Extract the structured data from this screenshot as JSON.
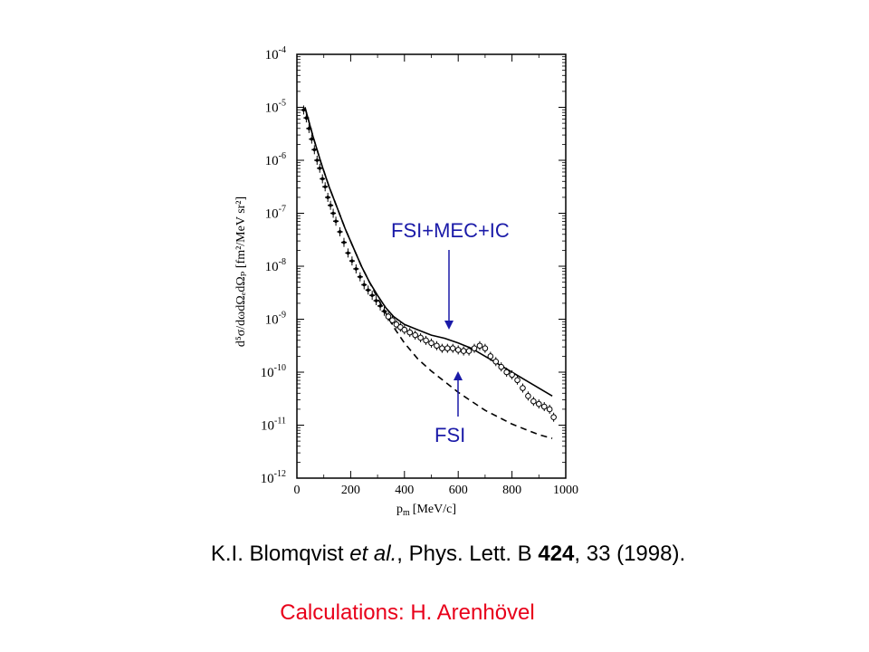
{
  "chart_data": {
    "type": "line",
    "xlabel_main": "p",
    "xlabel_sub": "m",
    "xlabel_unit": "[MeV/c]",
    "ylabel": "d⁵σ/dωdΩₑdΩₚ [fm²/MeV sr²]",
    "xlim": [
      0,
      1000
    ],
    "ylim_exponent": [
      -12,
      -4
    ],
    "y_scale": "log",
    "x_ticks": [
      "0",
      "200",
      "400",
      "600",
      "800",
      "1000"
    ],
    "y_ticks": [
      {
        "base": "10",
        "exp": "-4"
      },
      {
        "base": "10",
        "exp": "-5"
      },
      {
        "base": "10",
        "exp": "-6"
      },
      {
        "base": "10",
        "exp": "-7"
      },
      {
        "base": "10",
        "exp": "-8"
      },
      {
        "base": "10",
        "exp": "-9"
      },
      {
        "base": "10",
        "exp": "-10"
      },
      {
        "base": "10",
        "exp": "-11"
      },
      {
        "base": "10",
        "exp": "-12"
      }
    ],
    "series": [
      {
        "name": "FSI+MEC+IC",
        "style": "solid",
        "x": [
          30,
          60,
          90,
          120,
          150,
          180,
          210,
          240,
          270,
          300,
          330,
          360,
          400,
          450,
          500,
          550,
          600,
          650,
          700,
          750,
          800,
          850,
          900,
          950
        ],
        "logy": [
          -5.0,
          -5.55,
          -6.05,
          -6.5,
          -6.9,
          -7.3,
          -7.65,
          -8.0,
          -8.3,
          -8.55,
          -8.78,
          -8.95,
          -9.1,
          -9.2,
          -9.3,
          -9.36,
          -9.45,
          -9.55,
          -9.7,
          -9.85,
          -10.0,
          -10.15,
          -10.3,
          -10.45
        ]
      },
      {
        "name": "FSI",
        "style": "dashed",
        "x": [
          30,
          60,
          90,
          120,
          150,
          180,
          210,
          240,
          270,
          300,
          330,
          360,
          400,
          450,
          500,
          550,
          600,
          650,
          700,
          750,
          800,
          850,
          900,
          950
        ],
        "logy": [
          -5.0,
          -5.55,
          -6.05,
          -6.5,
          -6.9,
          -7.3,
          -7.65,
          -8.0,
          -8.3,
          -8.6,
          -8.88,
          -9.15,
          -9.45,
          -9.75,
          -9.98,
          -10.18,
          -10.38,
          -10.55,
          -10.72,
          -10.85,
          -10.98,
          -11.08,
          -11.18,
          -11.25
        ]
      }
    ],
    "data_points": {
      "x": [
        25,
        35,
        45,
        55,
        65,
        75,
        85,
        95,
        105,
        115,
        125,
        135,
        145,
        160,
        175,
        190,
        205,
        220,
        235,
        250,
        265,
        280,
        295,
        310,
        325,
        340,
        355,
        370,
        385,
        400,
        420,
        440,
        460,
        480,
        500,
        520,
        540,
        560,
        580,
        600,
        620,
        640,
        660,
        680,
        700,
        720,
        740,
        760,
        780,
        800,
        820,
        840,
        860,
        880,
        900,
        920,
        940,
        955
      ],
      "logy": [
        -5.05,
        -5.2,
        -5.4,
        -5.6,
        -5.8,
        -6.0,
        -6.15,
        -6.35,
        -6.5,
        -6.7,
        -6.85,
        -7.0,
        -7.15,
        -7.35,
        -7.55,
        -7.75,
        -7.9,
        -8.05,
        -8.2,
        -8.35,
        -8.45,
        -8.55,
        -8.65,
        -8.75,
        -8.85,
        -8.95,
        -9.02,
        -9.1,
        -9.15,
        -9.2,
        -9.25,
        -9.3,
        -9.35,
        -9.4,
        -9.45,
        -9.5,
        -9.55,
        -9.55,
        -9.55,
        -9.58,
        -9.6,
        -9.6,
        -9.55,
        -9.5,
        -9.55,
        -9.7,
        -9.8,
        -9.9,
        -10.0,
        -10.05,
        -10.15,
        -10.3,
        -10.45,
        -10.55,
        -10.6,
        -10.65,
        -10.7,
        -10.85
      ]
    },
    "annotations": [
      {
        "text": "FSI+MEC+IC",
        "color": "#1a1aa8"
      },
      {
        "text": "FSI",
        "color": "#1a1aa8"
      }
    ]
  },
  "citation": {
    "authors": "K.I. Blomqvist ",
    "etal": "et al.",
    "journal": ", Phys. Lett. B ",
    "volume": "424",
    "rest": ", 33 (1998)."
  },
  "credit": "Calculations:  H. Arenhövel",
  "colors": {
    "annotation": "#1a1aa8",
    "credit": "#e8001a"
  }
}
